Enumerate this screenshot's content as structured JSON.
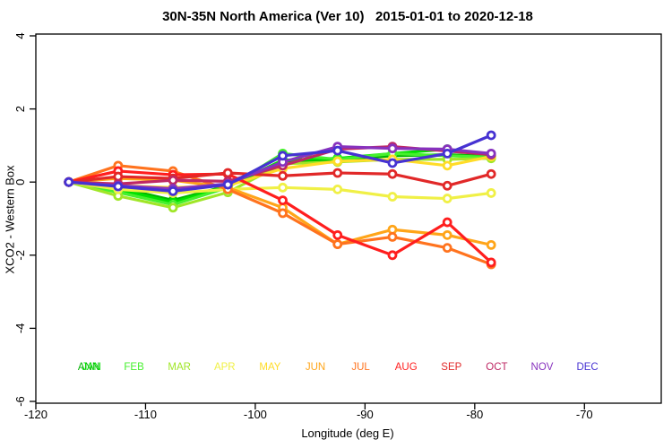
{
  "title": "30N-35N North America (Ver 10)   2015-01-01 to 2020-12-18",
  "chart_data": {
    "type": "line",
    "title": "30N-35N North America (Ver 10)   2015-01-01 to 2020-12-18",
    "xlabel": "Longitude (deg E)",
    "ylabel": "XCO2 - Western Box",
    "xlim": [
      -120,
      -63
    ],
    "ylim": [
      -6,
      4
    ],
    "xticks": [
      -120,
      -110,
      -100,
      -90,
      -80,
      -70
    ],
    "yticks": [
      4,
      2,
      0,
      -2,
      -4,
      -6
    ],
    "grid": false,
    "legend_position": "bottom",
    "marker": "open-circle",
    "x": [
      -117,
      -112.5,
      -107.5,
      -102.5,
      -97.5,
      -92.5,
      -87.5,
      -82.5,
      -78.5
    ],
    "series": [
      {
        "name": "ANN",
        "color": "#00b400",
        "legend_slot": 0,
        "values": [
          0,
          -0.15,
          -0.5,
          -0.1,
          0.55,
          0.6,
          0.72,
          0.75,
          0.7
        ]
      },
      {
        "name": "JAN",
        "color": "#00e000",
        "legend_slot": 0,
        "values": [
          0,
          -0.2,
          -0.55,
          -0.12,
          0.6,
          0.65,
          0.78,
          0.9,
          0.72
        ]
      },
      {
        "name": "FEB",
        "color": "#46f02d",
        "legend_slot": 1,
        "values": [
          0,
          -0.28,
          -0.62,
          -0.15,
          0.78,
          0.62,
          0.78,
          0.72,
          0.68
        ]
      },
      {
        "name": "MAR",
        "color": "#a0e628",
        "legend_slot": 2,
        "values": [
          0,
          -0.38,
          -0.7,
          -0.28,
          0.5,
          0.55,
          0.62,
          0.62,
          0.65
        ]
      },
      {
        "name": "APR",
        "color": "#f0f046",
        "legend_slot": 3,
        "values": [
          0,
          -0.2,
          -0.3,
          -0.2,
          -0.15,
          -0.2,
          -0.4,
          -0.45,
          -0.3
        ]
      },
      {
        "name": "MAY",
        "color": "#ffdc28",
        "legend_slot": 4,
        "values": [
          0,
          -0.1,
          -0.15,
          -0.1,
          0.37,
          0.57,
          0.62,
          0.45,
          0.7
        ]
      },
      {
        "name": "JUN",
        "color": "#ffa519",
        "legend_slot": 5,
        "values": [
          0,
          0.1,
          0.05,
          -0.15,
          -0.7,
          -1.7,
          -1.3,
          -1.45,
          -1.72
        ]
      },
      {
        "name": "JUL",
        "color": "#ff731e",
        "legend_slot": 6,
        "values": [
          0,
          0.45,
          0.3,
          -0.2,
          -0.85,
          -1.7,
          -1.5,
          -1.8,
          -2.25
        ]
      },
      {
        "name": "AUG",
        "color": "#ff1e1e",
        "legend_slot": 7,
        "values": [
          0,
          0.3,
          0.2,
          0.22,
          -0.5,
          -1.45,
          -2.0,
          -1.1,
          -2.2
        ]
      },
      {
        "name": "SEP",
        "color": "#e12828",
        "legend_slot": 8,
        "values": [
          0,
          0.15,
          0.1,
          0.25,
          0.17,
          0.25,
          0.22,
          -0.1,
          0.22
        ]
      },
      {
        "name": "OCT",
        "color": "#be2864",
        "legend_slot": 9,
        "values": [
          0,
          -0.05,
          0.05,
          0.02,
          0.45,
          0.9,
          0.97,
          0.85,
          0.75
        ]
      },
      {
        "name": "NOV",
        "color": "#8732be",
        "legend_slot": 10,
        "values": [
          0,
          -0.1,
          -0.18,
          -0.05,
          0.55,
          0.97,
          0.92,
          0.9,
          0.78
        ]
      },
      {
        "name": "DEC",
        "color": "#4632d2",
        "legend_slot": 11,
        "values": [
          0,
          -0.12,
          -0.25,
          -0.07,
          0.72,
          0.86,
          0.52,
          0.78,
          1.28
        ]
      }
    ]
  }
}
